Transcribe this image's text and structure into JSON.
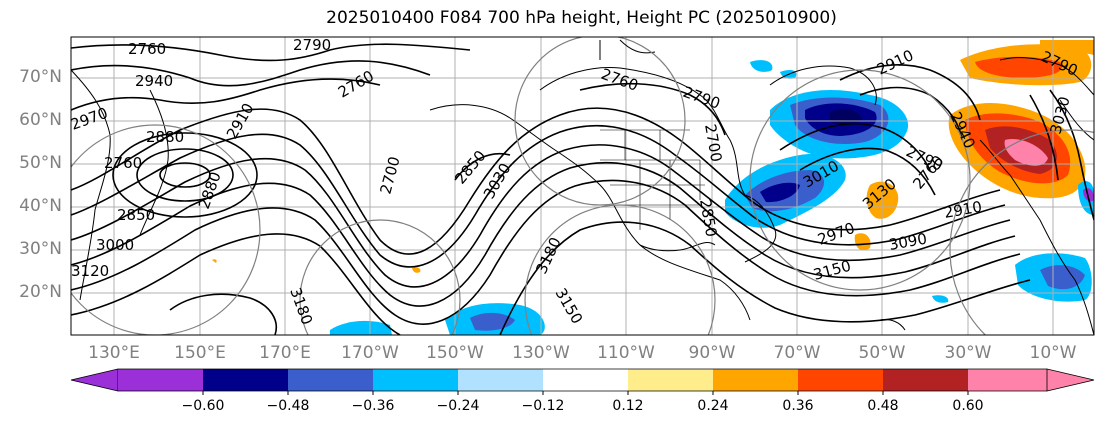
{
  "title": "2025010400 F084 700 hPa height, Height PC (2025010900)",
  "lat_labels": [
    "70°N",
    "60°N",
    "50°N",
    "40°N",
    "30°N",
    "20°N"
  ],
  "lon_labels": [
    "130°E",
    "150°E",
    "170°E",
    "170°W",
    "150°W",
    "130°W",
    "110°W",
    "90°W",
    "70°W",
    "50°W",
    "30°W",
    "10°W"
  ],
  "contour_labels": [
    "2760",
    "2790",
    "2940",
    "2970",
    "2880",
    "2760",
    "2850",
    "3000",
    "3120",
    "2760",
    "2910",
    "2880",
    "3180",
    "2700",
    "2850",
    "3030",
    "3180",
    "3150",
    "2760",
    "2790",
    "2700",
    "2850",
    "3010",
    "3130",
    "2910",
    "2940",
    "2790",
    "2760",
    "2970",
    "3090",
    "3150",
    "2910",
    "3030",
    "2790"
  ],
  "colorbar": {
    "ticks": [
      "−0.60",
      "−0.48",
      "−0.36",
      "−0.24",
      "−0.12",
      "0.12",
      "0.24",
      "0.36",
      "0.48",
      "0.60"
    ],
    "colors": [
      "#9b30d9",
      "#00008b",
      "#3a5fcd",
      "#00bfff",
      "#b0e2ff",
      "#ffffff",
      "#ffec8b",
      "#ffa500",
      "#ff4500",
      "#b22222",
      "#ff82ab"
    ]
  }
}
